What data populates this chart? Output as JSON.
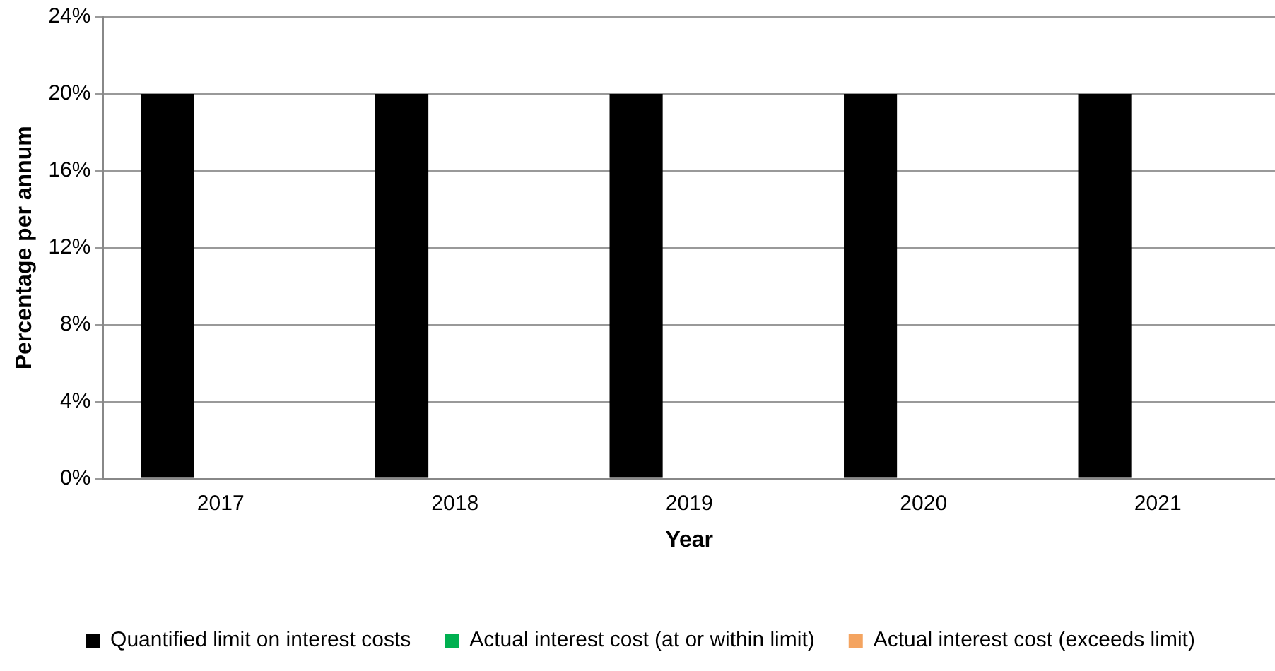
{
  "chart_data": {
    "type": "bar",
    "xlabel": "Year",
    "ylabel": "Percentage per annum",
    "categories": [
      "2017",
      "2018",
      "2019",
      "2020",
      "2021"
    ],
    "series": [
      {
        "name": "Quantified limit on interest costs",
        "color": "#000000",
        "values": [
          20,
          20,
          20,
          20,
          20
        ]
      },
      {
        "name": "Actual interest cost (at or within limit)",
        "color": "#00b050",
        "values": [
          null,
          null,
          null,
          null,
          null
        ]
      },
      {
        "name": "Actual interest cost (exceeds limit)",
        "color": "#f4a460",
        "values": [
          null,
          null,
          null,
          null,
          null
        ]
      }
    ],
    "ylim": [
      0,
      24
    ],
    "yticks": [
      {
        "value": 0,
        "label": "0%"
      },
      {
        "value": 4,
        "label": "4%"
      },
      {
        "value": 8,
        "label": "8%"
      },
      {
        "value": 12,
        "label": "12%"
      },
      {
        "value": 16,
        "label": "16%"
      },
      {
        "value": 20,
        "label": "20%"
      },
      {
        "value": 24,
        "label": "24%"
      }
    ],
    "grid": "y",
    "legend": "bottom"
  }
}
